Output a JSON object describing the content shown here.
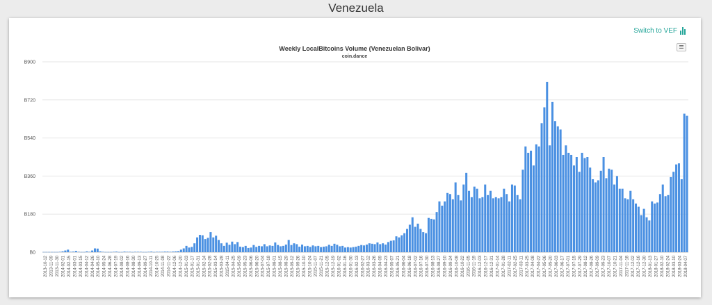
{
  "page": {
    "title": "Venezuela"
  },
  "toolbar": {
    "switch_label": "Switch to VEF",
    "switch_icon": "bar-chart-icon",
    "menu_icon": "hamburger-icon"
  },
  "colors": {
    "bar": "#4a90e2",
    "accent": "#26a69a",
    "grid": "#e6e6e6"
  },
  "chart_data": {
    "type": "bar",
    "title": "Weekly LocalBitcoins Volume (Venezuelan Bolivar)",
    "subtitle": "coin.dance",
    "ylim": [
      0,
      900
    ],
    "yticks": [
      0,
      180,
      360,
      540,
      720,
      900
    ],
    "ytick_labels": [
      "B0",
      "B180",
      "B360",
      "B540",
      "B720",
      "B900"
    ],
    "grid": true,
    "start_date": "2013-10-12",
    "xtick_labels": [
      "2013-10-12",
      "2013-11-09",
      "2013-11-30",
      "2014-02-01",
      "2014-02-15",
      "2014-03-01",
      "2014-03-15",
      "2014-04-12",
      "2014-04-26",
      "2014-05-10",
      "2014-05-24",
      "2014-06-28",
      "2014-07-19",
      "2014-08-02",
      "2014-08-16",
      "2014-08-30",
      "2014-09-13",
      "2014-09-27",
      "2014-10-11",
      "2014-10-25",
      "2014-11-08",
      "2014-11-22",
      "2014-12-06",
      "2014-12-20",
      "2015-01-03",
      "2015-01-17",
      "2015-01-31",
      "2015-02-14",
      "2015-02-28",
      "2015-03-14",
      "2015-03-28",
      "2015-04-11",
      "2015-04-25",
      "2015-05-09",
      "2015-05-23",
      "2015-06-06",
      "2015-06-20",
      "2015-07-04",
      "2015-07-18",
      "2015-08-01",
      "2015-08-15",
      "2015-08-29",
      "2015-09-12",
      "2015-09-26",
      "2015-10-10",
      "2015-10-24",
      "2015-11-07",
      "2015-11-21",
      "2015-12-05",
      "2015-12-19",
      "2016-01-02",
      "2016-01-16",
      "2016-01-30",
      "2016-02-13",
      "2016-02-27",
      "2016-03-12",
      "2016-03-26",
      "2016-04-09",
      "2016-04-23",
      "2016-05-07",
      "2016-05-21",
      "2016-06-04",
      "2016-06-18",
      "2016-07-02",
      "2016-07-16",
      "2016-07-30",
      "2016-08-13",
      "2016-08-27",
      "2016-09-10",
      "2016-09-24",
      "2016-10-08",
      "2016-10-22",
      "2016-11-05",
      "2016-11-19",
      "2016-12-03",
      "2016-12-17",
      "2016-12-31",
      "2017-01-14",
      "2017-01-28",
      "2017-02-11",
      "2017-02-25",
      "2017-03-11",
      "2017-03-25",
      "2017-04-08",
      "2017-04-22",
      "2017-05-06",
      "2017-05-20",
      "2017-06-03",
      "2017-06-17",
      "2017-07-01",
      "2017-07-15",
      "2017-07-29",
      "2017-08-12",
      "2017-08-26",
      "2017-09-09",
      "2017-09-23",
      "2017-10-07",
      "2017-10-21",
      "2017-11-04",
      "2017-11-18",
      "2017-12-02",
      "2017-12-16",
      "2017-12-30",
      "2018-01-13",
      "2018-01-27",
      "2018-02-10",
      "2018-02-24",
      "2018-03-10",
      "2018-03-24",
      "2018-04-07"
    ],
    "values": [
      1,
      1,
      1,
      1,
      1,
      1,
      2,
      4,
      8,
      12,
      2,
      3,
      6,
      2,
      1,
      1,
      4,
      2,
      8,
      18,
      17,
      4,
      2,
      1,
      1,
      1,
      2,
      3,
      1,
      1,
      3,
      2,
      2,
      1,
      2,
      2,
      2,
      1,
      1,
      2,
      3,
      1,
      2,
      2,
      2,
      3,
      3,
      2,
      3,
      4,
      5,
      12,
      18,
      30,
      22,
      25,
      42,
      70,
      82,
      80,
      62,
      68,
      95,
      70,
      78,
      58,
      42,
      30,
      45,
      35,
      50,
      38,
      48,
      26,
      24,
      30,
      20,
      22,
      34,
      25,
      30,
      28,
      38,
      28,
      32,
      30,
      46,
      34,
      28,
      30,
      36,
      58,
      34,
      42,
      38,
      26,
      36,
      28,
      30,
      25,
      32,
      28,
      30,
      24,
      26,
      28,
      35,
      30,
      40,
      35,
      28,
      30,
      22,
      24,
      22,
      24,
      26,
      30,
      34,
      32,
      36,
      42,
      40,
      38,
      46,
      38,
      42,
      36,
      48,
      54,
      56,
      75,
      70,
      80,
      90,
      110,
      130,
      165,
      120,
      135,
      110,
      95,
      90,
      162,
      158,
      155,
      190,
      240,
      220,
      240,
      280,
      275,
      250,
      330,
      270,
      245,
      320,
      375,
      290,
      260,
      310,
      300,
      255,
      260,
      320,
      270,
      290,
      255,
      260,
      255,
      260,
      300,
      275,
      240,
      320,
      315,
      270,
      250,
      390,
      500,
      470,
      480,
      410,
      510,
      500,
      610,
      685,
      805,
      505,
      710,
      620,
      595,
      580,
      460,
      505,
      470,
      460,
      410,
      450,
      380,
      470,
      445,
      450,
      400,
      345,
      330,
      340,
      385,
      450,
      350,
      395,
      390,
      320,
      360,
      300,
      300,
      255,
      250,
      290,
      250,
      230,
      215,
      175,
      205,
      165,
      150,
      240,
      230,
      235,
      275,
      320,
      265,
      270,
      355,
      380,
      415,
      420,
      345,
      655,
      645
    ]
  }
}
